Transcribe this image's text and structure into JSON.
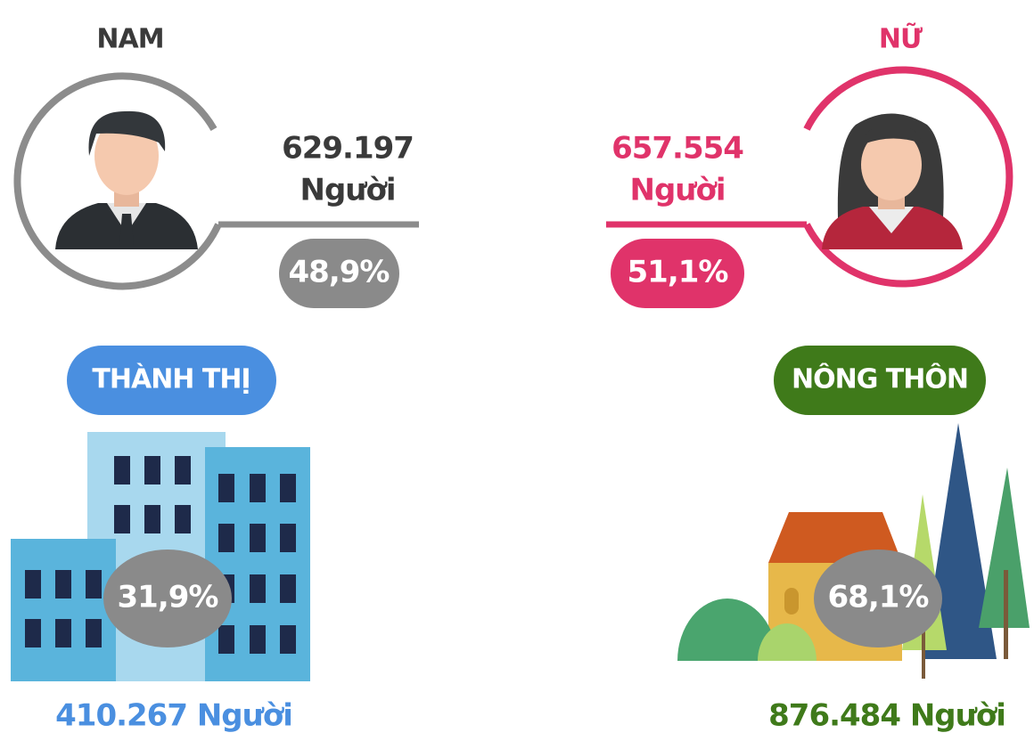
{
  "male": {
    "label": "NAM",
    "count": "629.197",
    "unit": "Người",
    "percent": "48,9%"
  },
  "female": {
    "label": "NỮ",
    "count": "657.554",
    "unit": "Người",
    "percent": "51,1%"
  },
  "urban": {
    "label": "THÀNH THỊ",
    "percent": "31,9%",
    "count": "410.267 Người"
  },
  "rural": {
    "label": "NÔNG THÔN",
    "percent": "68,1%",
    "count": "876.484 Người"
  }
}
